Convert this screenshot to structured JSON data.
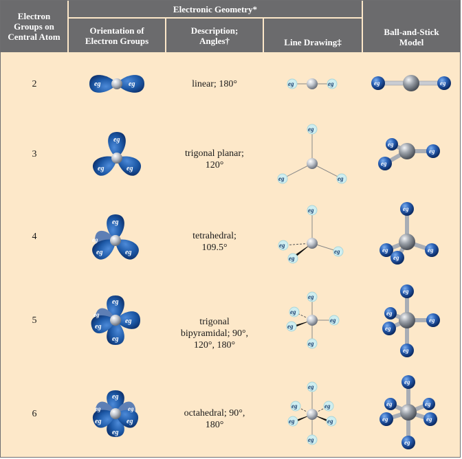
{
  "header": {
    "group_title": "Electronic Geometry*",
    "col1": "Electron Groups on Central Atom",
    "col2": "Orientation of Electron Groups",
    "col3": "Description; Angles†",
    "col4": "Line Drawing‡",
    "col5": "Ball-and-Stick Model"
  },
  "eg_label": "eg",
  "rows": [
    {
      "groups": "2",
      "description": "linear; 180°"
    },
    {
      "groups": "3",
      "description": "trigonal planar; 120°"
    },
    {
      "groups": "4",
      "description": "tetrahedral; 109.5°"
    },
    {
      "groups": "5",
      "description": "trigonal bipyramidal; 90°, 120°, 180°"
    },
    {
      "groups": "6",
      "description": "octahedral; 90°, 180°"
    }
  ],
  "colors": {
    "header_bg": "#6b6b6d",
    "body_bg": "#fde8c9",
    "lobe_blue": "#1e5aa8",
    "line_ball": "#cfeef0"
  }
}
